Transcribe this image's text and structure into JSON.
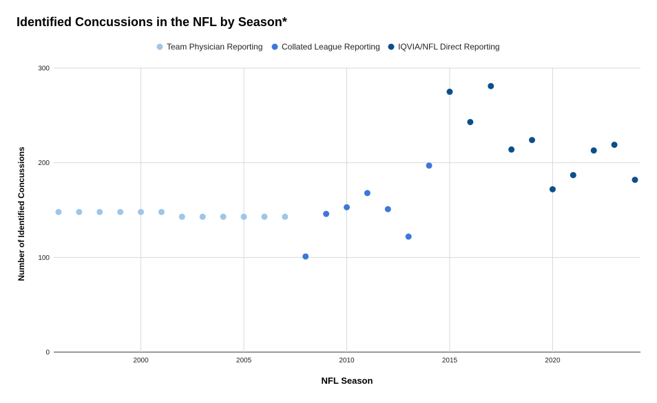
{
  "chart_data": {
    "type": "scatter",
    "title": "Identified Concussions in the NFL by Season*",
    "xlabel": "NFL Season",
    "ylabel": "Number of Identified Concussions",
    "xlim": [
      1996,
      2024
    ],
    "ylim": [
      0,
      300
    ],
    "xticks": [
      2000,
      2005,
      2010,
      2015,
      2020
    ],
    "yticks": [
      0,
      100,
      200,
      300
    ],
    "legend_position": "top-center",
    "grid": true,
    "series": [
      {
        "name": "Team Physician Reporting",
        "color": "#9fc5e8",
        "points": [
          {
            "x": 1996,
            "y": 148
          },
          {
            "x": 1997,
            "y": 148
          },
          {
            "x": 1998,
            "y": 148
          },
          {
            "x": 1999,
            "y": 148
          },
          {
            "x": 2000,
            "y": 148
          },
          {
            "x": 2001,
            "y": 148
          },
          {
            "x": 2002,
            "y": 143
          },
          {
            "x": 2003,
            "y": 143
          },
          {
            "x": 2004,
            "y": 143
          },
          {
            "x": 2005,
            "y": 143
          },
          {
            "x": 2006,
            "y": 143
          },
          {
            "x": 2007,
            "y": 143
          }
        ]
      },
      {
        "name": "Collated League Reporting",
        "color": "#3c78d8",
        "points": [
          {
            "x": 2008,
            "y": 101
          },
          {
            "x": 2009,
            "y": 146
          },
          {
            "x": 2010,
            "y": 153
          },
          {
            "x": 2011,
            "y": 168
          },
          {
            "x": 2012,
            "y": 151
          },
          {
            "x": 2013,
            "y": 122
          },
          {
            "x": 2014,
            "y": 197
          }
        ]
      },
      {
        "name": "IQVIA/NFL Direct Reporting",
        "color": "#0b4f8a",
        "points": [
          {
            "x": 2015,
            "y": 275
          },
          {
            "x": 2016,
            "y": 243
          },
          {
            "x": 2017,
            "y": 281
          },
          {
            "x": 2018,
            "y": 214
          },
          {
            "x": 2019,
            "y": 224
          },
          {
            "x": 2020,
            "y": 172
          },
          {
            "x": 2021,
            "y": 187
          },
          {
            "x": 2022,
            "y": 213
          },
          {
            "x": 2023,
            "y": 219
          },
          {
            "x": 2024,
            "y": 182
          }
        ]
      }
    ]
  }
}
